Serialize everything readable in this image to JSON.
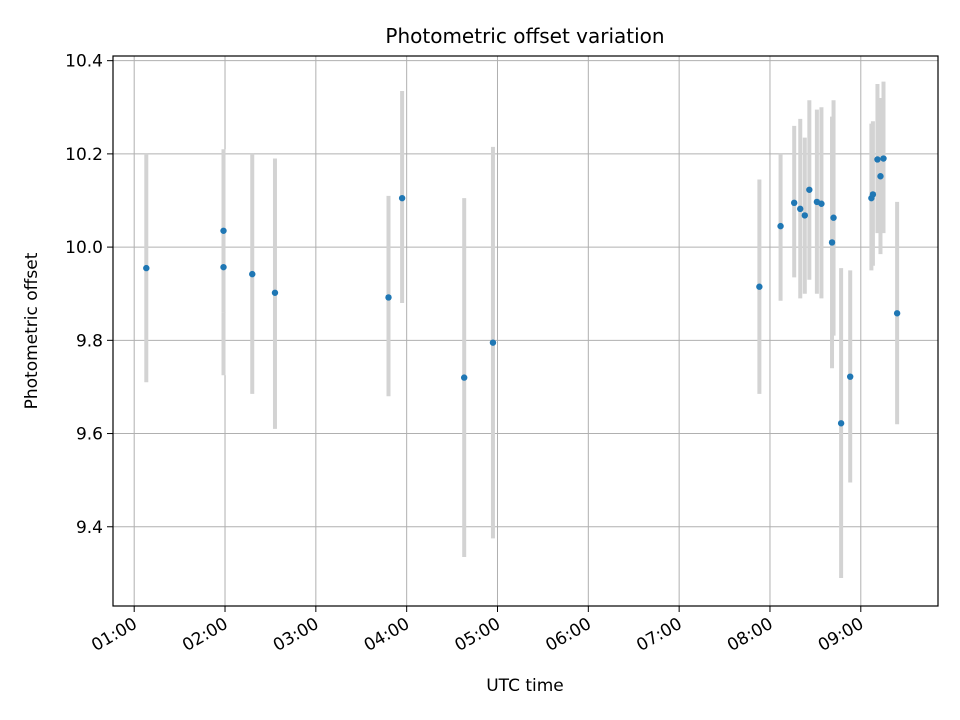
{
  "chart_data": {
    "type": "scatter",
    "title": "Photometric offset variation",
    "xlabel": "UTC time",
    "ylabel": "Photometric offset",
    "x_tick_labels": [
      "01:00",
      "02:00",
      "03:00",
      "04:00",
      "05:00",
      "06:00",
      "07:00",
      "08:00",
      "09:00"
    ],
    "y_ticks": [
      9.4,
      9.6,
      9.8,
      10.0,
      10.2,
      10.4
    ],
    "y_tick_labels": [
      "9.4",
      "9.6",
      "9.8",
      "10.0",
      "10.2",
      "10.4"
    ],
    "xlim": [
      "00:46",
      "09:51"
    ],
    "ylim": [
      9.23,
      10.41
    ],
    "grid": true,
    "point_color": "#1f77b4",
    "errorbar_color": "#d3d3d3",
    "series": [
      {
        "points": [
          {
            "x": "01:08",
            "y": 9.955,
            "ylo": 9.71,
            "yhi": 10.2
          },
          {
            "x": "01:59",
            "y": 9.957,
            "ylo": 9.725,
            "yhi": 9.86
          },
          {
            "x": "01:59",
            "y": 10.035,
            "ylo": 9.86,
            "yhi": 10.21
          },
          {
            "x": "02:18",
            "y": 9.942,
            "ylo": 9.685,
            "yhi": 10.2
          },
          {
            "x": "02:33",
            "y": 9.902,
            "ylo": 9.61,
            "yhi": 10.19
          },
          {
            "x": "03:48",
            "y": 9.892,
            "ylo": 9.68,
            "yhi": 10.11
          },
          {
            "x": "03:57",
            "y": 10.105,
            "ylo": 9.88,
            "yhi": 10.335
          },
          {
            "x": "04:38",
            "y": 9.72,
            "ylo": 9.335,
            "yhi": 10.105
          },
          {
            "x": "04:57",
            "y": 9.795,
            "ylo": 9.375,
            "yhi": 10.215
          },
          {
            "x": "07:53",
            "y": 9.915,
            "ylo": 9.685,
            "yhi": 10.145
          },
          {
            "x": "08:07",
            "y": 10.045,
            "ylo": 9.885,
            "yhi": 10.2
          },
          {
            "x": "08:16",
            "y": 10.095,
            "ylo": 9.935,
            "yhi": 10.26
          },
          {
            "x": "08:20",
            "y": 10.082,
            "ylo": 9.89,
            "yhi": 10.275
          },
          {
            "x": "08:23",
            "y": 10.068,
            "ylo": 9.9,
            "yhi": 10.235
          },
          {
            "x": "08:26",
            "y": 10.123,
            "ylo": 9.93,
            "yhi": 10.315
          },
          {
            "x": "08:31",
            "y": 10.097,
            "ylo": 9.9,
            "yhi": 10.295
          },
          {
            "x": "08:34",
            "y": 10.093,
            "ylo": 9.89,
            "yhi": 10.3
          },
          {
            "x": "08:41",
            "y": 10.01,
            "ylo": 9.74,
            "yhi": 10.28
          },
          {
            "x": "08:42",
            "y": 10.063,
            "ylo": 9.81,
            "yhi": 10.315
          },
          {
            "x": "08:47",
            "y": 9.622,
            "ylo": 9.29,
            "yhi": 9.955
          },
          {
            "x": "08:53",
            "y": 9.722,
            "ylo": 9.495,
            "yhi": 9.95
          },
          {
            "x": "09:07",
            "y": 10.105,
            "ylo": 9.95,
            "yhi": 10.265
          },
          {
            "x": "09:08",
            "y": 10.113,
            "ylo": 9.96,
            "yhi": 10.27
          },
          {
            "x": "09:11",
            "y": 10.188,
            "ylo": 10.03,
            "yhi": 10.35
          },
          {
            "x": "09:13",
            "y": 10.152,
            "ylo": 9.985,
            "yhi": 10.32
          },
          {
            "x": "09:15",
            "y": 10.19,
            "ylo": 10.03,
            "yhi": 10.355
          },
          {
            "x": "09:24",
            "y": 9.858,
            "ylo": 9.62,
            "yhi": 10.097
          }
        ]
      }
    ]
  }
}
